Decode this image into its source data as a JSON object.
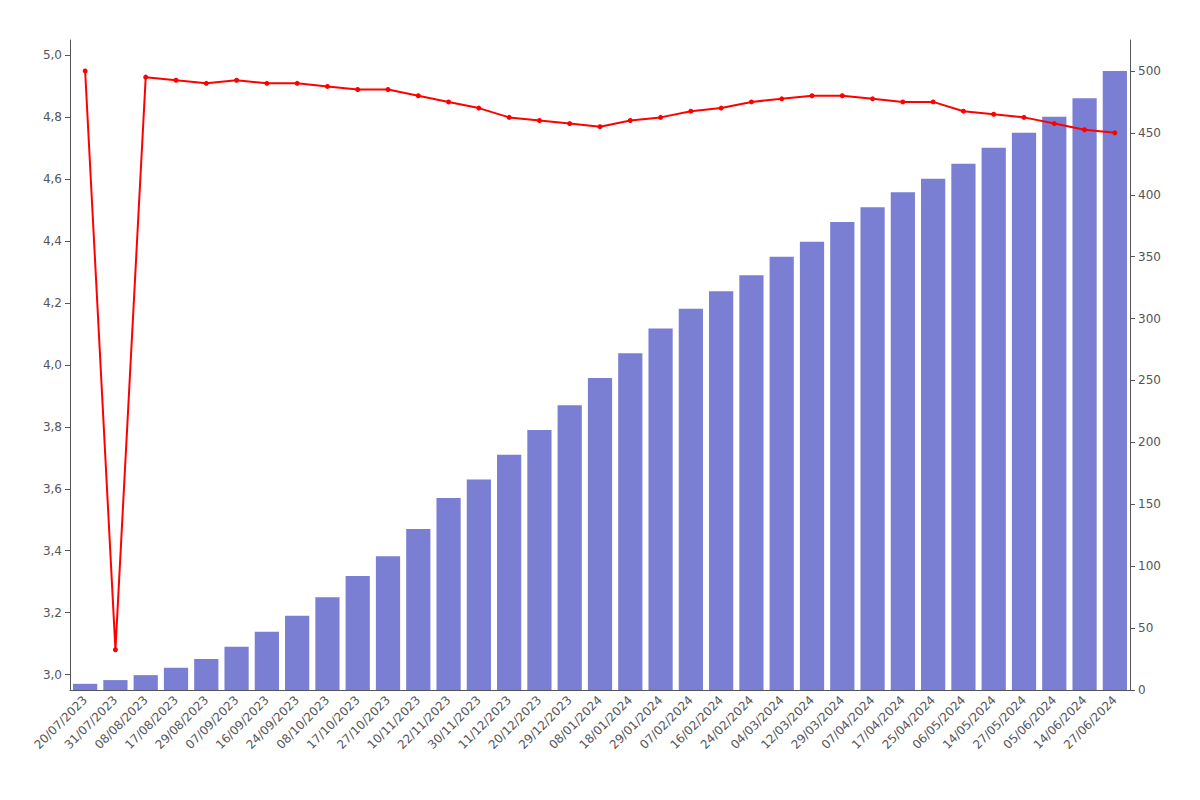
{
  "chart_data": {
    "type": "bar",
    "categories": [
      "20/07/2023",
      "31/07/2023",
      "08/08/2023",
      "17/08/2023",
      "29/08/2023",
      "07/09/2023",
      "16/09/2023",
      "24/09/2023",
      "08/10/2023",
      "17/10/2023",
      "27/10/2023",
      "10/11/2023",
      "22/11/2023",
      "30/11/2023",
      "11/12/2023",
      "20/12/2023",
      "29/12/2023",
      "08/01/2024",
      "18/01/2024",
      "29/01/2024",
      "07/02/2024",
      "16/02/2024",
      "24/02/2024",
      "04/03/2024",
      "12/03/2024",
      "29/03/2024",
      "07/04/2024",
      "17/04/2024",
      "25/04/2024",
      "06/05/2024",
      "14/05/2024",
      "27/05/2024",
      "05/06/2024",
      "14/06/2024",
      "27/06/2024"
    ],
    "series": [
      {
        "type": "bar",
        "color": "#7b7fd4",
        "axis": "y2",
        "values": [
          5,
          8,
          12,
          18,
          25,
          35,
          47,
          60,
          75,
          92,
          108,
          130,
          155,
          170,
          190,
          210,
          230,
          252,
          272,
          292,
          308,
          322,
          335,
          350,
          362,
          378,
          390,
          402,
          413,
          425,
          438,
          450,
          463,
          478,
          500
        ]
      },
      {
        "type": "line",
        "color": "#ff0000",
        "axis": "y",
        "marker": "circle",
        "values": [
          4.95,
          3.08,
          4.93,
          4.92,
          4.91,
          4.92,
          4.91,
          4.91,
          4.9,
          4.89,
          4.89,
          4.87,
          4.85,
          4.83,
          4.8,
          4.79,
          4.78,
          4.77,
          4.79,
          4.8,
          4.82,
          4.83,
          4.85,
          4.86,
          4.87,
          4.87,
          4.86,
          4.85,
          4.85,
          4.82,
          4.81,
          4.8,
          4.78,
          4.76,
          4.75
        ]
      }
    ],
    "ylim": [
      2.95,
      5.05
    ],
    "yticks": [
      {
        "value": 3.0,
        "label": "3,0"
      },
      {
        "value": 3.2,
        "label": "3,2"
      },
      {
        "value": 3.4,
        "label": "3,4"
      },
      {
        "value": 3.6,
        "label": "3,6"
      },
      {
        "value": 3.8,
        "label": "3,8"
      },
      {
        "value": 4.0,
        "label": "4,0"
      },
      {
        "value": 4.2,
        "label": "4,2"
      },
      {
        "value": 4.4,
        "label": "4,4"
      },
      {
        "value": 4.6,
        "label": "4,6"
      },
      {
        "value": 4.8,
        "label": "4,8"
      },
      {
        "value": 5.0,
        "label": "5,0"
      }
    ],
    "y2lim": [
      0,
      525
    ],
    "y2ticks": [
      0,
      50,
      100,
      150,
      200,
      250,
      300,
      350,
      400,
      450,
      500
    ],
    "grid": false
  }
}
